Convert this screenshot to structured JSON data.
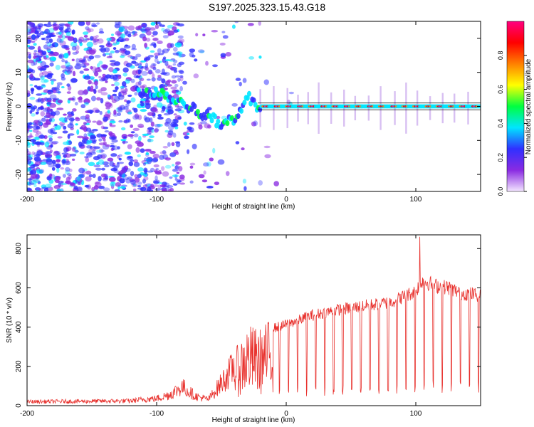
{
  "title": "S197.2025.323.15.43.G18",
  "chart_data": [
    {
      "type": "heatmap",
      "name": "spectrogram",
      "xlabel": "Height of straight line (km)",
      "ylabel": "Frequency (Hz)",
      "xlim": [
        -200,
        150
      ],
      "ylim": [
        -25,
        25
      ],
      "xticks": [
        -200,
        -100,
        0,
        100
      ],
      "xtick_labels": [
        "-200",
        "-100",
        "0",
        "100"
      ],
      "yticks": [
        -20,
        -10,
        0,
        10,
        20
      ],
      "ytick_labels": [
        "-20",
        "-10",
        "0",
        "10",
        "20"
      ],
      "colorbar": {
        "label": "Normalized spectral amplitude",
        "range": [
          0,
          1
        ],
        "ticks": [
          0.0,
          0.2,
          0.4,
          0.6,
          0.8
        ],
        "tick_labels": [
          "0.0",
          "0.2",
          "0.4",
          "0.6",
          "0.8"
        ],
        "colors": [
          "#f4e6ff",
          "#8a2be2",
          "#3030ff",
          "#00e5ff",
          "#00ff40",
          "#ffff00",
          "#ff8000",
          "#ff0000",
          "#ff0080"
        ]
      },
      "ridge": [
        {
          "x": -115,
          "y": 4
        },
        {
          "x": -100,
          "y": 4.5
        },
        {
          "x": -90,
          "y": 3
        },
        {
          "x": -80,
          "y": 1
        },
        {
          "x": -70,
          "y": -1
        },
        {
          "x": -60,
          "y": -3
        },
        {
          "x": -50,
          "y": -5
        },
        {
          "x": -40,
          "y": -4
        },
        {
          "x": -35,
          "y": -2
        },
        {
          "x": -30,
          "y": 3
        },
        {
          "x": -25,
          "y": 0.5
        },
        {
          "x": -20,
          "y": 0
        },
        {
          "x": 0,
          "y": 0
        },
        {
          "x": 50,
          "y": 0
        },
        {
          "x": 100,
          "y": 0
        },
        {
          "x": 150,
          "y": 0
        }
      ]
    },
    {
      "type": "line",
      "name": "snr",
      "xlabel": "Height of straight line (km)",
      "ylabel": "SNR (10 * v/v)",
      "xlim": [
        -200,
        150
      ],
      "ylim": [
        0,
        870
      ],
      "xticks": [
        -200,
        -100,
        0,
        100
      ],
      "xtick_labels": [
        "-200",
        "-100",
        "0",
        "100"
      ],
      "yticks": [
        0,
        200,
        400,
        600,
        800
      ],
      "ytick_labels": [
        "0",
        "200",
        "400",
        "600",
        "800"
      ],
      "color": "#e8302c",
      "envelope": [
        {
          "x": -200,
          "y": 25
        },
        {
          "x": -120,
          "y": 30
        },
        {
          "x": -110,
          "y": 40
        },
        {
          "x": -100,
          "y": 45
        },
        {
          "x": -90,
          "y": 70
        },
        {
          "x": -80,
          "y": 120
        },
        {
          "x": -70,
          "y": 60
        },
        {
          "x": -60,
          "y": 40
        },
        {
          "x": -40,
          "y": 250
        },
        {
          "x": -30,
          "y": 380
        },
        {
          "x": -20,
          "y": 360
        },
        {
          "x": -10,
          "y": 420
        },
        {
          "x": 0,
          "y": 440
        },
        {
          "x": 20,
          "y": 490
        },
        {
          "x": 40,
          "y": 520
        },
        {
          "x": 60,
          "y": 540
        },
        {
          "x": 80,
          "y": 560
        },
        {
          "x": 90,
          "y": 590
        },
        {
          "x": 100,
          "y": 620
        },
        {
          "x": 105,
          "y": 680
        },
        {
          "x": 115,
          "y": 650
        },
        {
          "x": 125,
          "y": 640
        },
        {
          "x": 135,
          "y": 610
        },
        {
          "x": 150,
          "y": 600
        }
      ],
      "peak": {
        "x": 103,
        "y": 860
      }
    }
  ]
}
